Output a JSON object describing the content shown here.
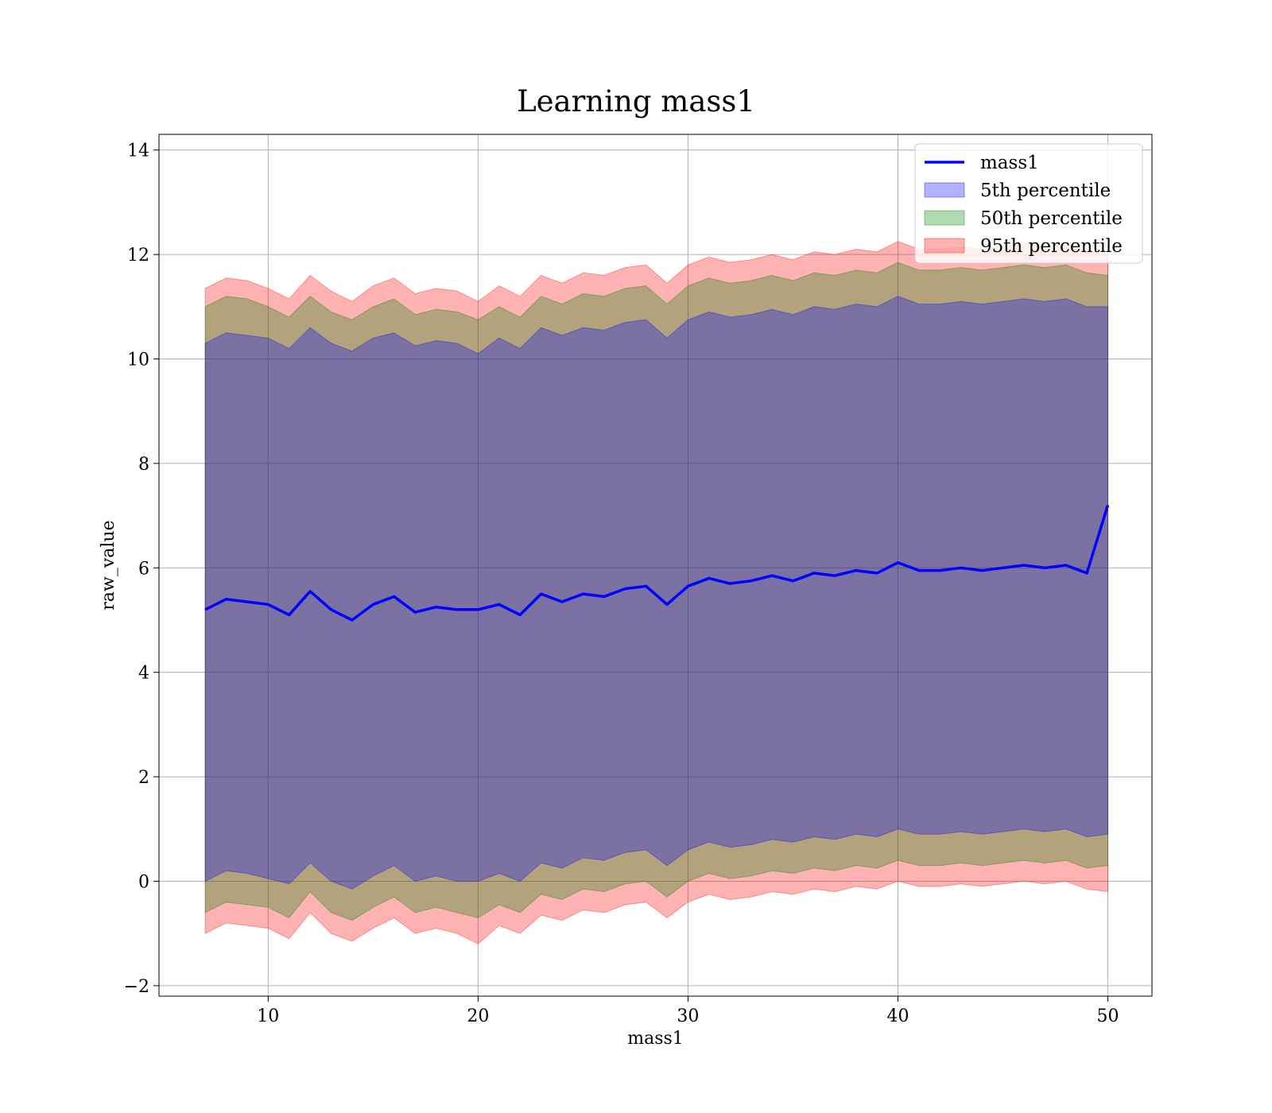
{
  "chart_data": {
    "type": "area",
    "title": "Learning mass1",
    "xlabel": "mass1",
    "ylabel": "raw_value",
    "xlim": [
      4.8,
      52.1
    ],
    "ylim": [
      -2.2,
      14.3
    ],
    "xticks": [
      10,
      20,
      30,
      40,
      50
    ],
    "yticks": [
      -2,
      0,
      2,
      4,
      6,
      8,
      10,
      12,
      14
    ],
    "grid": true,
    "legend_position": "top-right",
    "x": [
      7,
      8,
      9,
      10,
      11,
      12,
      13,
      14,
      15,
      16,
      17,
      18,
      19,
      20,
      21,
      22,
      23,
      24,
      25,
      26,
      27,
      28,
      29,
      30,
      31,
      32,
      33,
      34,
      35,
      36,
      37,
      38,
      39,
      40,
      41,
      42,
      43,
      44,
      45,
      46,
      47,
      48,
      49,
      50
    ],
    "series": [
      {
        "name": "mass1",
        "kind": "line",
        "color": "#0000ff",
        "values": [
          5.2,
          5.4,
          5.35,
          5.3,
          5.1,
          5.55,
          5.2,
          5.0,
          5.3,
          5.45,
          5.15,
          5.25,
          5.2,
          5.2,
          5.3,
          5.1,
          5.5,
          5.35,
          5.5,
          5.45,
          5.6,
          5.65,
          5.3,
          5.65,
          5.8,
          5.7,
          5.75,
          5.85,
          5.75,
          5.9,
          5.85,
          5.95,
          5.9,
          6.1,
          5.95,
          5.95,
          6.0,
          5.95,
          6.0,
          6.05,
          6.0,
          6.05,
          5.9,
          7.2
        ]
      },
      {
        "name": "5th percentile",
        "kind": "band",
        "color": "#0000ff",
        "lower": [
          0.0,
          0.2,
          0.15,
          0.05,
          -0.05,
          0.35,
          0.0,
          -0.15,
          0.1,
          0.3,
          0.0,
          0.1,
          0.0,
          0.0,
          0.15,
          0.0,
          0.35,
          0.25,
          0.45,
          0.4,
          0.55,
          0.6,
          0.3,
          0.6,
          0.75,
          0.65,
          0.7,
          0.8,
          0.75,
          0.85,
          0.8,
          0.9,
          0.85,
          1.0,
          0.9,
          0.9,
          0.95,
          0.9,
          0.95,
          1.0,
          0.95,
          1.0,
          0.85,
          0.9
        ],
        "upper": [
          10.3,
          10.5,
          10.45,
          10.4,
          10.2,
          10.6,
          10.3,
          10.15,
          10.4,
          10.5,
          10.25,
          10.35,
          10.3,
          10.1,
          10.4,
          10.2,
          10.6,
          10.45,
          10.6,
          10.55,
          10.7,
          10.75,
          10.4,
          10.75,
          10.9,
          10.8,
          10.85,
          10.95,
          10.85,
          11.0,
          10.95,
          11.05,
          11.0,
          11.2,
          11.05,
          11.05,
          11.1,
          11.05,
          11.1,
          11.15,
          11.1,
          11.15,
          11.0,
          11.0
        ]
      },
      {
        "name": "50th percentile",
        "kind": "band",
        "color": "#008000",
        "lower": [
          -0.6,
          -0.4,
          -0.45,
          -0.5,
          -0.7,
          -0.2,
          -0.6,
          -0.75,
          -0.5,
          -0.3,
          -0.6,
          -0.5,
          -0.6,
          -0.7,
          -0.45,
          -0.6,
          -0.25,
          -0.35,
          -0.15,
          -0.2,
          -0.05,
          0.0,
          -0.3,
          0.0,
          0.15,
          0.05,
          0.1,
          0.2,
          0.15,
          0.25,
          0.2,
          0.3,
          0.25,
          0.4,
          0.3,
          0.3,
          0.35,
          0.3,
          0.35,
          0.4,
          0.35,
          0.4,
          0.25,
          0.3
        ],
        "upper": [
          11.0,
          11.2,
          11.15,
          11.0,
          10.8,
          11.2,
          10.9,
          10.75,
          11.0,
          11.15,
          10.85,
          10.95,
          10.9,
          10.75,
          11.0,
          10.8,
          11.2,
          11.05,
          11.25,
          11.2,
          11.35,
          11.4,
          11.05,
          11.4,
          11.55,
          11.45,
          11.5,
          11.6,
          11.5,
          11.65,
          11.6,
          11.7,
          11.65,
          11.85,
          11.7,
          11.7,
          11.75,
          11.7,
          11.75,
          11.8,
          11.75,
          11.8,
          11.65,
          11.6
        ]
      },
      {
        "name": "95th percentile",
        "kind": "band",
        "color": "#ff0000",
        "lower": [
          -1.0,
          -0.8,
          -0.85,
          -0.9,
          -1.1,
          -0.6,
          -1.0,
          -1.15,
          -0.9,
          -0.7,
          -1.0,
          -0.9,
          -1.0,
          -1.2,
          -0.85,
          -1.0,
          -0.65,
          -0.75,
          -0.55,
          -0.6,
          -0.45,
          -0.4,
          -0.7,
          -0.4,
          -0.25,
          -0.35,
          -0.3,
          -0.2,
          -0.25,
          -0.15,
          -0.2,
          -0.1,
          -0.15,
          0.0,
          -0.1,
          -0.1,
          -0.05,
          -0.1,
          -0.05,
          0.0,
          -0.05,
          0.0,
          -0.15,
          -0.2
        ],
        "upper": [
          11.35,
          11.55,
          11.5,
          11.35,
          11.15,
          11.6,
          11.3,
          11.1,
          11.4,
          11.55,
          11.25,
          11.35,
          11.3,
          11.1,
          11.4,
          11.2,
          11.6,
          11.45,
          11.65,
          11.6,
          11.75,
          11.8,
          11.45,
          11.8,
          11.95,
          11.85,
          11.9,
          12.0,
          11.9,
          12.05,
          12.0,
          12.1,
          12.05,
          12.25,
          12.1,
          12.1,
          12.15,
          12.1,
          12.15,
          12.2,
          12.15,
          12.2,
          12.05,
          12.0
        ]
      }
    ]
  }
}
